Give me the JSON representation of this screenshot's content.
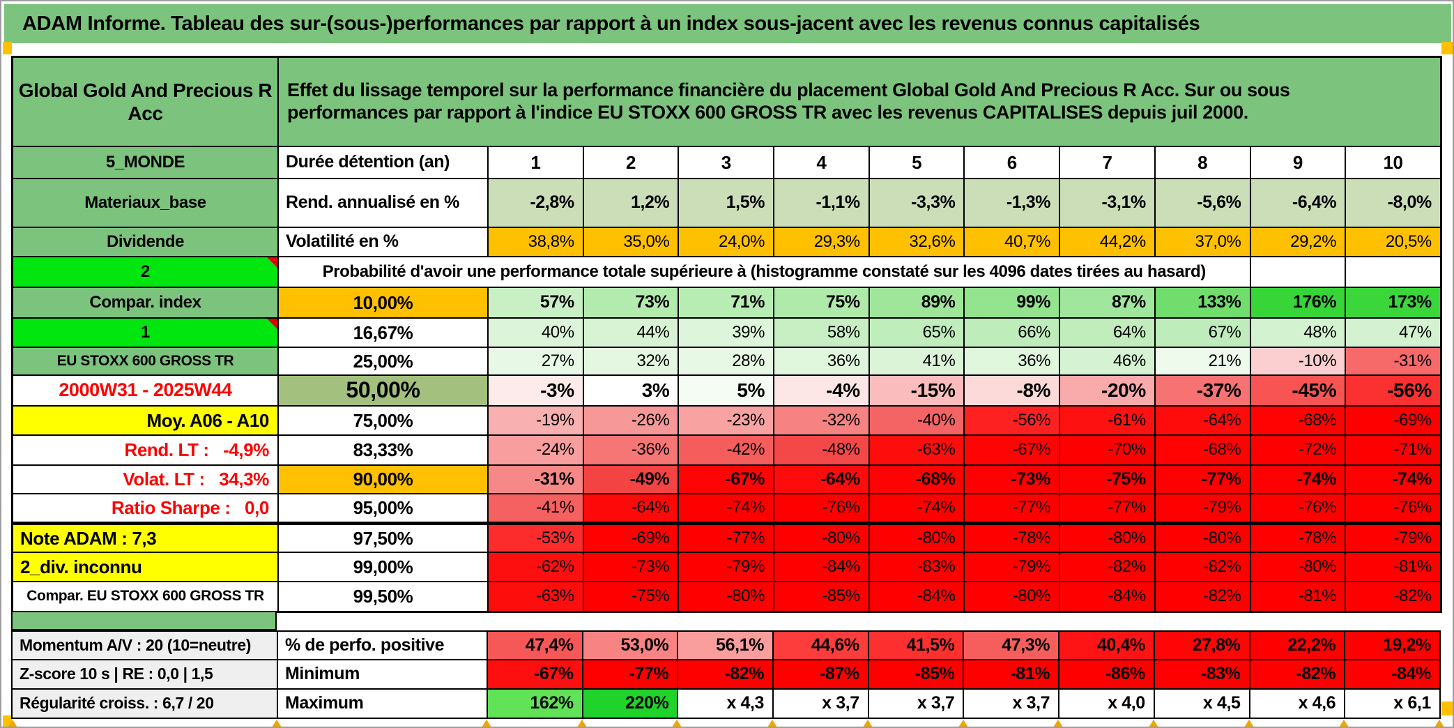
{
  "title": "ADAM Informe. Tableau des sur-(sous-)performances par rapport à un index sous-jacent avec les revenus connus capitalisés",
  "header": {
    "fund": "Global Gold And Precious R\nAcc",
    "description": "Effet du lissage temporel sur la performance financière du placement Global Gold And Precious R Acc. Sur ou sous\nperformances par rapport à l'indice EU STOXX 600 GROSS TR avec les revenus CAPITALISES depuis juil 2000."
  },
  "colors": {
    "header_green": "#7cc47d",
    "bright_green": "#00e60e",
    "orange": "#ffc000",
    "yellow": "#ffff00",
    "olive_green": "#a4c07e",
    "sage_green": "#cbdeb8",
    "light_gray": "#efefef",
    "full_red": "#ff0000",
    "comment_marker_red": "#e60000",
    "boundary_marker_orange": "#f0a500"
  },
  "note_text": "Probabilité d'avoir une performance totale supérieure à (histogramme constaté sur les 4096 dates tirées au hasard)",
  "main_rows": [
    {
      "left": {
        "t": "5_MONDE",
        "bg": "#7cc47d",
        "align": "center",
        "size": 24
      },
      "label": {
        "t": "Durée détention (an)",
        "bg": "#ffffff",
        "align": "left",
        "size": 25
      },
      "values": [
        "1",
        "2",
        "3",
        "4",
        "5",
        "6",
        "7",
        "8",
        "9",
        "10"
      ],
      "bgs": [
        "#ffffff",
        "#ffffff",
        "#ffffff",
        "#ffffff",
        "#ffffff",
        "#ffffff",
        "#ffffff",
        "#ffffff",
        "#ffffff",
        "#ffffff"
      ],
      "vbold": true,
      "vsize": 26,
      "valign": "center"
    },
    {
      "left": {
        "t": "Materiaux_base",
        "bg": "#7cc47d",
        "align": "center",
        "size": 24
      },
      "label": {
        "t": "Rend. annualisé en %",
        "bg": "#ffffff",
        "align": "left",
        "size": 25
      },
      "values": [
        "-2,8%",
        "1,2%",
        "1,5%",
        "-1,1%",
        "-3,3%",
        "-1,3%",
        "-3,1%",
        "-5,6%",
        "-6,4%",
        "-8,0%"
      ],
      "bgs": [
        "#cbdeb8",
        "#cbdeb8",
        "#cbdeb8",
        "#cbdeb8",
        "#cbdeb8",
        "#cbdeb8",
        "#cbdeb8",
        "#cbdeb8",
        "#cbdeb8",
        "#cbdeb8"
      ],
      "vbold": true,
      "vsize": 25
    },
    {
      "left": {
        "t": "Dividende",
        "bg": "#7cc47d",
        "align": "center",
        "size": 24
      },
      "label": {
        "t": "Volatilité en %",
        "bg": "#ffffff",
        "align": "left",
        "size": 25
      },
      "values": [
        "38,8%",
        "35,0%",
        "24,0%",
        "29,3%",
        "32,6%",
        "40,7%",
        "44,2%",
        "37,0%",
        "29,2%",
        "20,5%"
      ],
      "bgs": [
        "#ffc000",
        "#ffc000",
        "#ffc000",
        "#ffc000",
        "#ffc000",
        "#ffc000",
        "#ffc000",
        "#ffc000",
        "#ffc000",
        "#ffc000"
      ],
      "vbold": false,
      "vsize": 24
    },
    {
      "type": "note",
      "left": {
        "t": "2",
        "bg": "#00e60e",
        "align": "center",
        "size": 24,
        "marker": true
      },
      "tail": 2
    },
    {
      "left": {
        "t": "Compar. index",
        "bg": "#7cc47d",
        "align": "center",
        "size": 24
      },
      "label": {
        "t": "10,00%",
        "bg": "#ffc000",
        "align": "center",
        "size": 26
      },
      "values": [
        "57%",
        "73%",
        "71%",
        "75%",
        "89%",
        "99%",
        "87%",
        "133%",
        "176%",
        "173%"
      ],
      "bgs": [
        "#c8f0c4",
        "#b3ebaf",
        "#b7ecb3",
        "#afeaab",
        "#9fe69b",
        "#93e38f",
        "#a1e69d",
        "#70dd6d",
        "#37d537",
        "#3ad63a"
      ],
      "vbold": true,
      "vsize": 25
    },
    {
      "left": {
        "t": "1",
        "bg": "#00e60e",
        "align": "center",
        "size": 24,
        "marker": true
      },
      "label": {
        "t": "16,67%",
        "bg": "#ffffff",
        "align": "center",
        "size": 26
      },
      "values": [
        "40%",
        "44%",
        "39%",
        "58%",
        "65%",
        "66%",
        "64%",
        "67%",
        "48%",
        "47%"
      ],
      "bgs": [
        "#dcf4d9",
        "#d7f3d4",
        "#ddf5da",
        "#c7efc3",
        "#c0edbc",
        "#bfecbb",
        "#c1edbd",
        "#beecba",
        "#d3f2d0",
        "#d4f2d1"
      ],
      "vbold": false,
      "vsize": 24
    },
    {
      "left": {
        "t": "EU STOXX 600 GROSS TR",
        "bg": "#7cc47d",
        "align": "center",
        "size": 21
      },
      "label": {
        "t": "25,00%",
        "bg": "#ffffff",
        "align": "center",
        "size": 26
      },
      "values": [
        "27%",
        "32%",
        "28%",
        "36%",
        "41%",
        "36%",
        "46%",
        "21%",
        "-10%",
        "-31%"
      ],
      "bgs": [
        "#e8f8e6",
        "#e4f7e1",
        "#e7f8e5",
        "#e0f6dd",
        "#dbf4d8",
        "#e0f6dd",
        "#d5f2d2",
        "#eefaec",
        "#fbcfcf",
        "#f76a6a"
      ],
      "vbold": false,
      "vsize": 24
    },
    {
      "left": {
        "t": "2000W31 - 2025W44",
        "bg": "#ffffff",
        "color": "#ff0000",
        "align": "center",
        "size": 27
      },
      "label": {
        "t": "50,00%",
        "bg": "#a4c07e",
        "align": "center",
        "size": 32
      },
      "values": [
        "-3%",
        "3%",
        "5%",
        "-4%",
        "-15%",
        "-8%",
        "-20%",
        "-37%",
        "-45%",
        "-56%"
      ],
      "bgs": [
        "#fdeaea",
        "#fefffe",
        "#f5fcf4",
        "#fce6e6",
        "#fabcbc",
        "#fcdada",
        "#f9aaaa",
        "#f77373",
        "#f95454",
        "#fb3030"
      ],
      "vbold": true,
      "vsize": 28
    },
    {
      "left": {
        "t": "Moy. A06 - A10",
        "bg": "#ffff00",
        "align": "right",
        "size": 26
      },
      "label": {
        "t": "75,00%",
        "bg": "#ffffff",
        "align": "center",
        "size": 26
      },
      "values": [
        "-19%",
        "-26%",
        "-23%",
        "-32%",
        "-40%",
        "-56%",
        "-61%",
        "-64%",
        "-68%",
        "-69%"
      ],
      "bgs": [
        "#f9b0b0",
        "#f79898",
        "#f8a2a2",
        "#f68282",
        "#f56464",
        "#fd2121",
        "#fe1111",
        "#fe0b0b",
        "#ff0303",
        "#ff0000"
      ],
      "vbold": false,
      "vsize": 24
    },
    {
      "left": {
        "t": "Rend. LT :   -4,9%",
        "bg": "#ffffff",
        "color": "#ff0000",
        "align": "right",
        "size": 26
      },
      "label": {
        "t": "83,33%",
        "bg": "#ffffff",
        "align": "center",
        "size": 26
      },
      "values": [
        "-24%",
        "-36%",
        "-42%",
        "-48%",
        "-63%",
        "-67%",
        "-70%",
        "-68%",
        "-72%",
        "-71%"
      ],
      "bgs": [
        "#f89e9e",
        "#f67575",
        "#f55d5d",
        "#f44848",
        "#fe0d0d",
        "#ff0404",
        "#ff0000",
        "#ff0202",
        "#ff0000",
        "#ff0000"
      ],
      "vbold": false,
      "vsize": 24
    },
    {
      "left": {
        "t": "Volat. LT :   34,3%",
        "bg": "#ffffff",
        "color": "#ff0000",
        "align": "right",
        "size": 26
      },
      "label": {
        "t": "90,00%",
        "bg": "#ffc000",
        "align": "center",
        "size": 26
      },
      "values": [
        "-31%",
        "-49%",
        "-67%",
        "-64%",
        "-68%",
        "-73%",
        "-75%",
        "-77%",
        "-74%",
        "-74%"
      ],
      "bgs": [
        "#f78888",
        "#f44343",
        "#ff0404",
        "#fe0b0b",
        "#ff0202",
        "#ff0000",
        "#ff0000",
        "#ff0000",
        "#ff0000",
        "#ff0000"
      ],
      "vbold": true,
      "vsize": 25
    },
    {
      "left": {
        "t": "Ratio Sharpe :   0,0",
        "bg": "#ffffff",
        "color": "#ff0000",
        "align": "right",
        "size": 26
      },
      "label": {
        "t": "95,00%",
        "bg": "#ffffff",
        "align": "center",
        "size": 26
      },
      "values": [
        "-41%",
        "-64%",
        "-74%",
        "-76%",
        "-74%",
        "-77%",
        "-77%",
        "-79%",
        "-76%",
        "-76%"
      ],
      "bgs": [
        "#f56060",
        "#fe0909",
        "#ff0000",
        "#ff0000",
        "#ff0000",
        "#ff0000",
        "#ff0000",
        "#ff0000",
        "#ff0000",
        "#ff0000"
      ],
      "vbold": false,
      "vsize": 24
    },
    {
      "thick": true,
      "left": {
        "t": "Note ADAM : 7,3",
        "bg": "#ffff00",
        "align": "left",
        "size": 26
      },
      "label": {
        "t": "97,50%",
        "bg": "#ffffff",
        "align": "center",
        "size": 26
      },
      "values": [
        "-53%",
        "-69%",
        "-77%",
        "-80%",
        "-80%",
        "-78%",
        "-80%",
        "-80%",
        "-78%",
        "-79%"
      ],
      "bgs": [
        "#fc2c2c",
        "#ff0101",
        "#ff0000",
        "#ff0000",
        "#ff0000",
        "#ff0000",
        "#ff0000",
        "#ff0000",
        "#ff0000",
        "#ff0000"
      ],
      "vbold": false,
      "vsize": 24
    },
    {
      "left": {
        "t": "2_div. inconnu",
        "bg": "#ffff00",
        "align": "left",
        "size": 26
      },
      "label": {
        "t": "99,00%",
        "bg": "#ffffff",
        "align": "center",
        "size": 26
      },
      "values": [
        "-62%",
        "-73%",
        "-79%",
        "-84%",
        "-83%",
        "-79%",
        "-82%",
        "-82%",
        "-80%",
        "-81%"
      ],
      "bgs": [
        "#fe0f0f",
        "#ff0000",
        "#ff0000",
        "#ff0000",
        "#ff0000",
        "#ff0000",
        "#ff0000",
        "#ff0000",
        "#ff0000",
        "#ff0000"
      ],
      "vbold": false,
      "vsize": 24
    },
    {
      "left": {
        "t": "Compar. EU STOXX 600 GROSS TR",
        "bg": "#ffffff",
        "align": "center",
        "size": 21
      },
      "label": {
        "t": "99,50%",
        "bg": "#ffffff",
        "align": "center",
        "size": 26
      },
      "values": [
        "-63%",
        "-75%",
        "-80%",
        "-85%",
        "-84%",
        "-80%",
        "-84%",
        "-82%",
        "-81%",
        "-82%"
      ],
      "bgs": [
        "#fe0d0d",
        "#ff0000",
        "#ff0000",
        "#ff0000",
        "#ff0000",
        "#ff0000",
        "#ff0000",
        "#ff0000",
        "#ff0000",
        "#ff0000"
      ],
      "vbold": false,
      "vsize": 24
    }
  ],
  "bottom_rows": [
    {
      "left": {
        "t": "Momentum A/V : 20 (10=neutre)",
        "bg": "#efefef",
        "align": "left",
        "size": 23
      },
      "label": {
        "t": "% de perfo. positive",
        "bg": "#ffffff",
        "align": "left",
        "size": 25
      },
      "values": [
        "47,4%",
        "53,0%",
        "56,1%",
        "44,6%",
        "41,5%",
        "47,3%",
        "40,4%",
        "27,8%",
        "22,2%",
        "19,2%"
      ],
      "bgs": [
        "#f65757",
        "#f88383",
        "#fa9d9d",
        "#fd3c3c",
        "#fe2f2f",
        "#f65e5e",
        "#fe1414",
        "#ff0505",
        "#ff0000",
        "#ff0000"
      ],
      "vbold": true,
      "vsize": 25
    },
    {
      "left": {
        "t": "Z-score 10 s | RE : 0,0 | 1,5",
        "bg": "#efefef",
        "align": "left",
        "size": 23
      },
      "label": {
        "t": "Minimum",
        "bg": "#ffffff",
        "align": "left",
        "size": 25
      },
      "values": [
        "-67%",
        "-77%",
        "-82%",
        "-87%",
        "-85%",
        "-81%",
        "-86%",
        "-83%",
        "-82%",
        "-84%"
      ],
      "bgs": [
        "#fe0f0f",
        "#ff0000",
        "#ff0000",
        "#ff0000",
        "#ff0000",
        "#ff0000",
        "#ff0000",
        "#ff0000",
        "#ff0000",
        "#ff0000"
      ],
      "vbold": true,
      "vsize": 25
    },
    {
      "left": {
        "t": "Régularité croiss. : 6,7 / 20",
        "bg": "#efefef",
        "align": "left",
        "size": 23
      },
      "label": {
        "t": "Maximum",
        "bg": "#ffffff",
        "align": "left",
        "size": 25
      },
      "values": [
        "162%",
        "220%",
        "x 4,3",
        "x 3,7",
        "x 3,7",
        "x 3,7",
        "x 4,0",
        "x 4,5",
        "x 4,6",
        "x 6,1"
      ],
      "bgs": [
        "#60e356",
        "#20d32a",
        "#ffffff",
        "#ffffff",
        "#ffffff",
        "#ffffff",
        "#ffffff",
        "#ffffff",
        "#ffffff",
        "#ffffff"
      ],
      "vbold": true,
      "vsize": 25
    }
  ]
}
